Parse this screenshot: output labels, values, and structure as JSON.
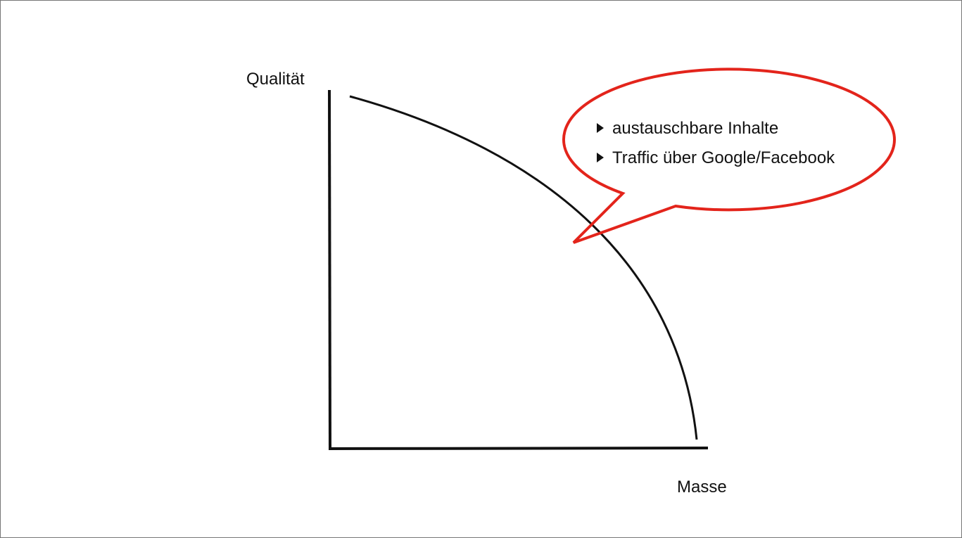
{
  "diagram": {
    "y_axis_label": "Qualität",
    "x_axis_label": "Masse",
    "callout": {
      "items": [
        "austauschbare Inhalte",
        "Traffic über Google/Facebook"
      ]
    }
  }
}
